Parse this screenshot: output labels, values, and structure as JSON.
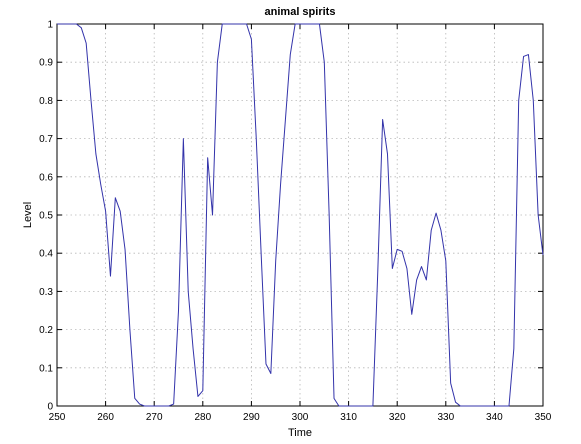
{
  "chart_data": {
    "type": "line",
    "title": "animal spirits",
    "xlabel": "Time",
    "ylabel": "Level",
    "xlim": [
      250,
      350
    ],
    "ylim": [
      0,
      1
    ],
    "xticks": [
      250,
      260,
      270,
      280,
      290,
      300,
      310,
      320,
      330,
      340,
      350
    ],
    "yticks": [
      0,
      0.1,
      0.2,
      0.3,
      0.4,
      0.5,
      0.6,
      0.7,
      0.8,
      0.9,
      1
    ],
    "xtick_labels": [
      "250",
      "260",
      "270",
      "280",
      "290",
      "300",
      "310",
      "320",
      "330",
      "340",
      "350"
    ],
    "ytick_labels": [
      "0",
      "0.1",
      "0.2",
      "0.3",
      "0.4",
      "0.5",
      "0.6",
      "0.7",
      "0.8",
      "0.9",
      "1"
    ],
    "grid": true,
    "series": [
      {
        "color": "#3333aa",
        "x": [
          250,
          251,
          252,
          253,
          254,
          255,
          256,
          257,
          258,
          259,
          260,
          261,
          262,
          263,
          264,
          265,
          266,
          267,
          268,
          269,
          270,
          271,
          272,
          273,
          274,
          275,
          276,
          277,
          278,
          279,
          280,
          281,
          282,
          283,
          284,
          285,
          286,
          287,
          288,
          289,
          290,
          291,
          292,
          293,
          294,
          295,
          296,
          297,
          298,
          299,
          300,
          301,
          302,
          303,
          304,
          305,
          306,
          307,
          308,
          309,
          310,
          311,
          312,
          313,
          314,
          315,
          316,
          317,
          318,
          319,
          320,
          321,
          322,
          323,
          324,
          325,
          326,
          327,
          328,
          329,
          330,
          331,
          332,
          333,
          334,
          335,
          336,
          337,
          338,
          339,
          340,
          341,
          342,
          343,
          344,
          345,
          346,
          347,
          348,
          349,
          350
        ],
        "y": [
          1.0,
          1.0,
          1.0,
          1.0,
          1.0,
          0.99,
          0.95,
          0.8,
          0.66,
          0.58,
          0.51,
          0.34,
          0.545,
          0.51,
          0.41,
          0.2,
          0.02,
          0.005,
          0.0,
          0.0,
          0.0,
          0.0,
          0.0,
          0.0,
          0.005,
          0.25,
          0.7,
          0.3,
          0.15,
          0.025,
          0.04,
          0.65,
          0.5,
          0.9,
          1.0,
          1.0,
          1.0,
          1.0,
          1.0,
          1.0,
          0.96,
          0.7,
          0.4,
          0.11,
          0.085,
          0.38,
          0.58,
          0.75,
          0.92,
          1.0,
          1.0,
          1.0,
          1.0,
          1.0,
          1.0,
          0.9,
          0.5,
          0.02,
          0.0,
          0.0,
          0.0,
          0.0,
          0.0,
          0.0,
          0.0,
          0.0,
          0.35,
          0.75,
          0.66,
          0.36,
          0.41,
          0.405,
          0.36,
          0.24,
          0.33,
          0.365,
          0.33,
          0.46,
          0.505,
          0.46,
          0.38,
          0.06,
          0.01,
          0.0,
          0.0,
          0.0,
          0.0,
          0.0,
          0.0,
          0.0,
          0.0,
          0.0,
          0.0,
          0.0,
          0.15,
          0.8,
          0.915,
          0.92,
          0.8,
          0.5,
          0.395
        ]
      }
    ]
  }
}
